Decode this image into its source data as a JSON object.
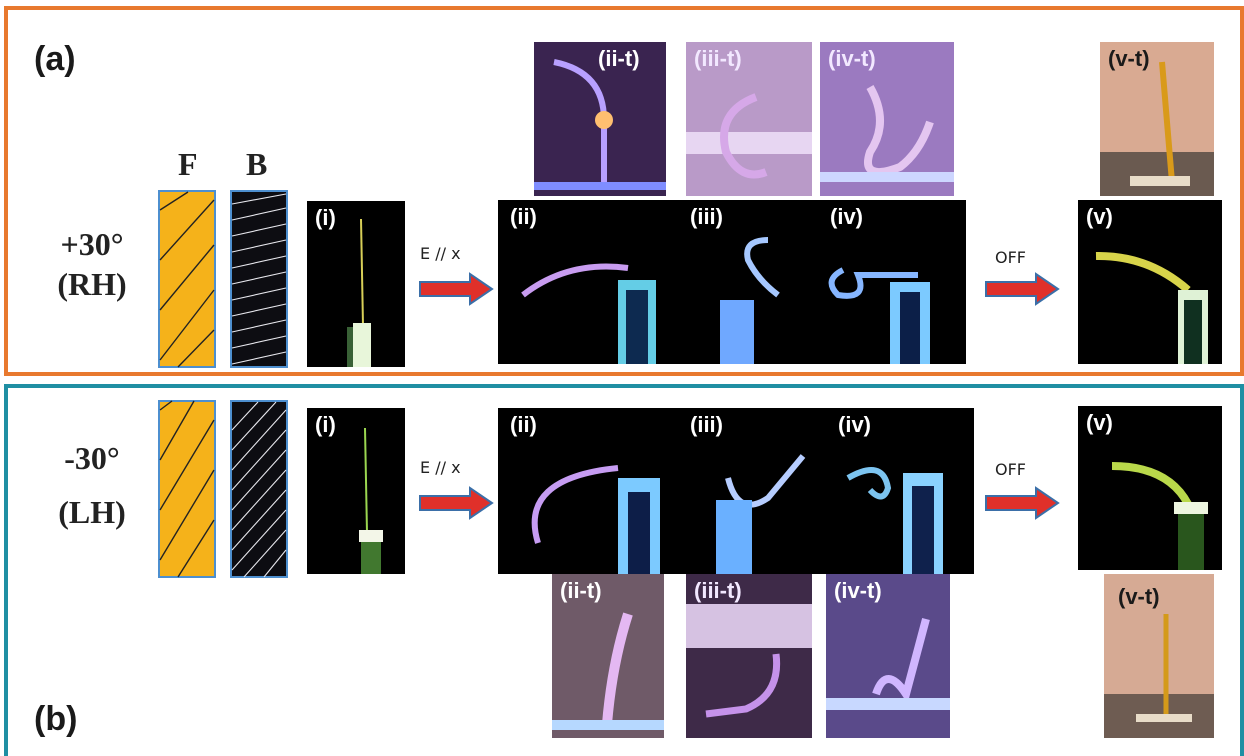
{
  "panel_a": {
    "label": "(a)",
    "angle": "+30°",
    "handedness": "(RH)",
    "front_label": "F",
    "back_label": "B",
    "field_label": "E // x",
    "off_label": "OFF",
    "tags": {
      "i": "(i)",
      "ii": "(ii)",
      "iii": "(iii)",
      "iv": "(iv)",
      "v": "(v)",
      "ii_t": "(ii-t)",
      "iii_t": "(iii-t)",
      "iv_t": "(iv-t)",
      "v_t": "(v-t)"
    }
  },
  "panel_b": {
    "label": "(b)",
    "angle": "-30°",
    "handedness": "(LH)",
    "field_label": "E // x",
    "off_label": "OFF",
    "tags": {
      "i": "(i)",
      "ii": "(ii)",
      "iii": "(iii)",
      "iv": "(iv)",
      "v": "(v)",
      "ii_t": "(ii-t)",
      "iii_t": "(iii-t)",
      "iv_t": "(iv-t)",
      "v_t": "(v-t)"
    }
  },
  "colors": {
    "panel_a_border": "#e8792e",
    "panel_b_border": "#1f8fa3",
    "fiber_orange": "#f5b21a",
    "arrow_red": "#e0302a",
    "arrow_outline": "#3b6fa8"
  }
}
